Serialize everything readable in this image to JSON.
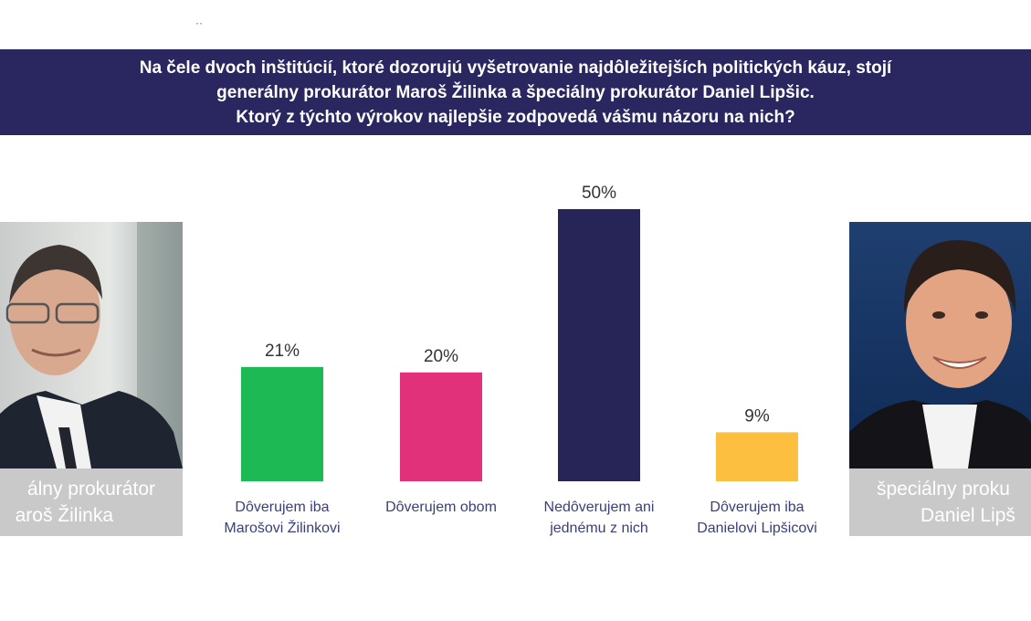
{
  "top_mark": "··",
  "header": {
    "lines": [
      "Na čele dvoch inštitúcií, ktoré dozorujú vyšetrovanie najdôležitejších politických káuz, stojí",
      "generálny prokurátor Maroš Žilinka a špeciálny prokurátor Daniel Lipšic.",
      "Ktorý z týchto výrokov najlepšie zodpovedá vášmu názoru na nich?"
    ]
  },
  "left_person": {
    "caption_lines": [
      "álny prokurátor",
      "aroš Žilinka"
    ]
  },
  "right_person": {
    "caption_lines": [
      "špeciálny proku",
      "Daniel Lipš"
    ]
  },
  "chart_data": {
    "type": "bar",
    "categories": [
      [
        "Dôverujem iba",
        "Marošovi Žilinkovi"
      ],
      [
        "Dôverujem obom"
      ],
      [
        "Nedôverujem ani",
        "jednému z nich"
      ],
      [
        "Dôverujem iba",
        "Danielovi Lipšicovi"
      ]
    ],
    "values": [
      21,
      20,
      50,
      9
    ],
    "value_labels": [
      "21%",
      "20%",
      "50%",
      "9%"
    ],
    "colors": [
      "#1db954",
      "#e0317a",
      "#272557",
      "#fdbf40"
    ],
    "unit": "%",
    "ylim": [
      0,
      50
    ],
    "grid": false,
    "legend": "none"
  }
}
